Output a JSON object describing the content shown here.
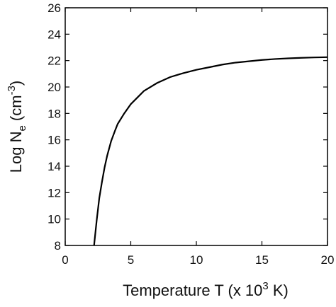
{
  "chart_data": {
    "type": "line",
    "title": "",
    "xlabel": {
      "prefix": "Temperature T (x 10",
      "sup": "3",
      "suffix": " K)"
    },
    "ylabel": {
      "prefix": "Log N",
      "sub": "e",
      "mid": " (cm",
      "sup": "-3",
      "suffix": ")"
    },
    "xlim": [
      0,
      20
    ],
    "ylim": [
      8,
      26
    ],
    "xticks": [
      0,
      5,
      10,
      15,
      20
    ],
    "yticks": [
      8,
      10,
      12,
      14,
      16,
      18,
      20,
      22,
      24,
      26
    ],
    "grid": false,
    "legend": "none",
    "line_color": "#000000",
    "series": [
      {
        "x": [
          2.2,
          2.4,
          2.6,
          2.8,
          3.0,
          3.2,
          3.5,
          3.8,
          4.0,
          4.5,
          5.0,
          5.5,
          6.0,
          7.0,
          8.0,
          9.0,
          10.0,
          11.0,
          12.0,
          13.0,
          14.0,
          15.0,
          16.0,
          17.0,
          18.0,
          19.0,
          20.0
        ],
        "y": [
          8.0,
          9.9,
          11.6,
          12.8,
          13.9,
          14.8,
          15.9,
          16.7,
          17.2,
          18.0,
          18.7,
          19.2,
          19.7,
          20.3,
          20.75,
          21.05,
          21.3,
          21.5,
          21.7,
          21.85,
          21.95,
          22.05,
          22.12,
          22.17,
          22.21,
          22.24,
          22.26
        ]
      }
    ]
  }
}
